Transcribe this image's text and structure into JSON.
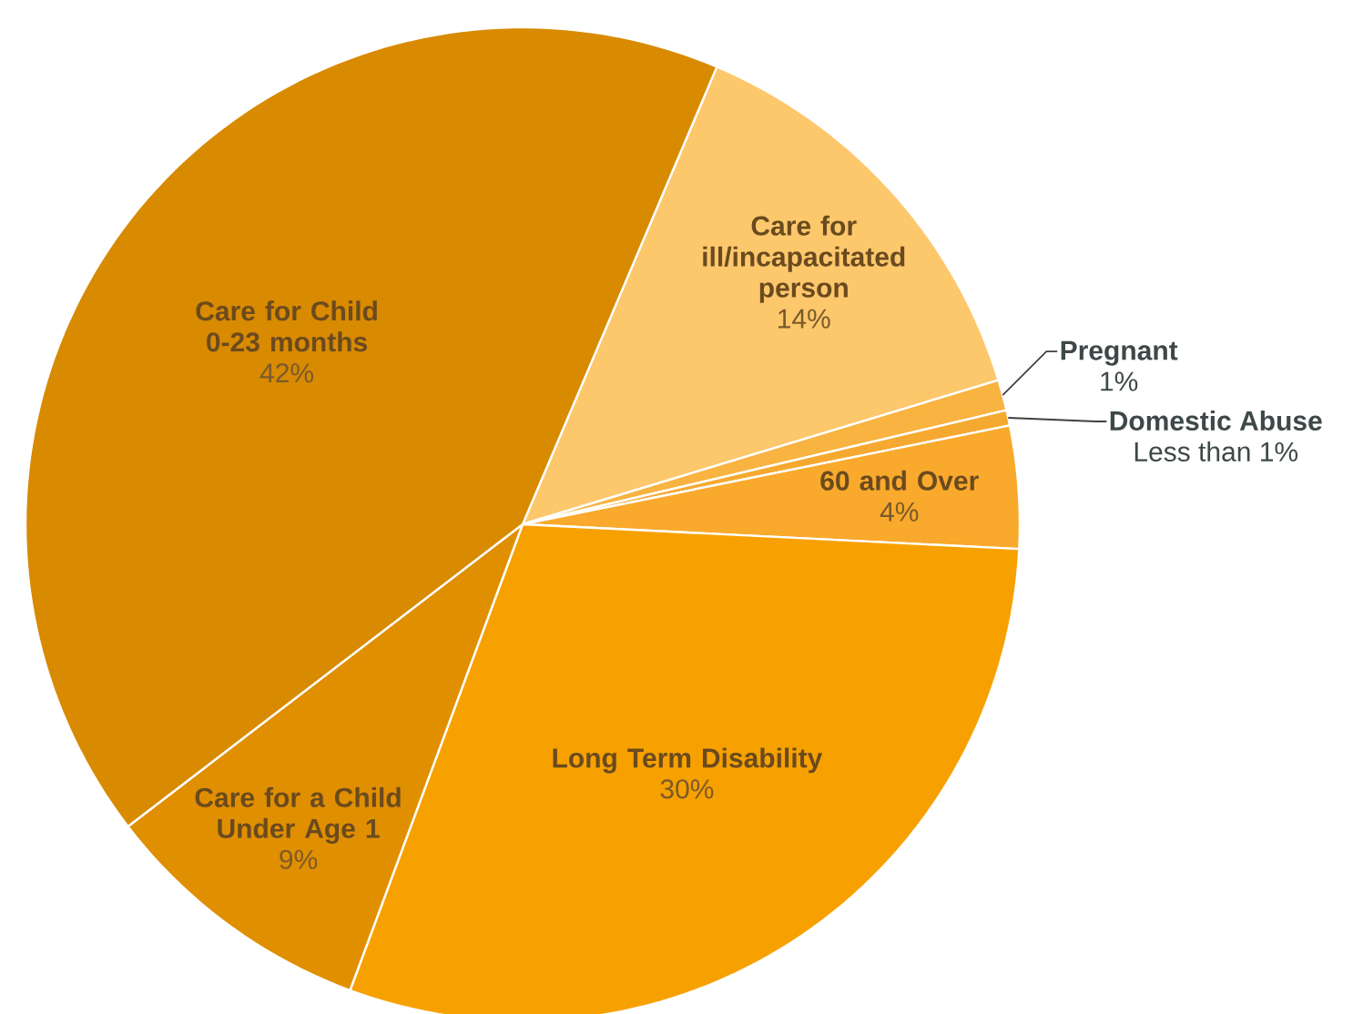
{
  "chart_data": {
    "type": "pie",
    "categories": [
      "Care for ill/incapacitated person",
      "Pregnant",
      "Domestic Abuse",
      "60 and Over",
      "Long Term Disability",
      "Care for a Child Under Age 1",
      "Care for Child 0-23 months"
    ],
    "values": [
      14,
      1,
      0.5,
      4,
      30,
      9,
      42
    ],
    "value_labels": [
      "14%",
      "1%",
      "Less than 1%",
      "4%",
      "30%",
      "9%",
      "42%"
    ],
    "colors": [
      "#fdc76c",
      "#f8b340",
      "#f6a930",
      "#f9a92c",
      "#f7a100",
      "#e08f00",
      "#d88a00"
    ]
  }
}
